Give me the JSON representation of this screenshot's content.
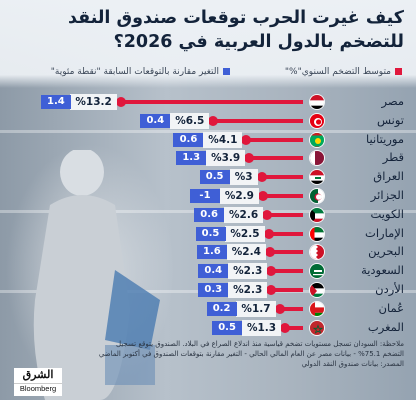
{
  "title": "كيف غيرت الحرب توقعات صندوق النقد للتضخم بالدول العربية في 2026؟",
  "legend": {
    "inflation": "متوسط التضخم السنوي\"%\"",
    "change": "التغير مقارنة بالتوقعات السابقة \"نقطة مئوية\""
  },
  "colors": {
    "bar": "#e0173c",
    "change_box": "#3f5fd6",
    "value_box": "#f2f4f6"
  },
  "chart_data": {
    "type": "bar",
    "orientation": "horizontal",
    "title": "كيف غيرت الحرب توقعات صندوق النقد للتضخم بالدول العربية في 2026؟",
    "categories": [
      "مصر",
      "تونس",
      "موريتانيا",
      "قطر",
      "العراق",
      "الجزائر",
      "الكويت",
      "الإمارات",
      "البحرين",
      "السعودية",
      "الأردن",
      "عُمان",
      "المغرب"
    ],
    "series": [
      {
        "name": "متوسط التضخم السنوي\"%\"",
        "values": [
          13.2,
          6.5,
          4.1,
          3.9,
          3,
          2.9,
          2.6,
          2.5,
          2.4,
          2.3,
          2.3,
          1.7,
          1.3
        ],
        "labels": [
          "%13.2",
          "%6.5",
          "%4.1",
          "%3.9",
          "%3",
          "%2.9",
          "%2.6",
          "%2.5",
          "%2.4",
          "%2.3",
          "%2.3",
          "%1.7",
          "%1.3"
        ]
      },
      {
        "name": "التغير مقارنة بالتوقعات السابقة \"نقطة مئوية\"",
        "values": [
          1.4,
          0.4,
          0.6,
          1.3,
          0.5,
          -1,
          0.6,
          0.5,
          1.6,
          0.4,
          0.3,
          0.2,
          0.5
        ],
        "labels": [
          "1.4",
          "0.4",
          "0.6",
          "1.3",
          "0.5",
          "-1",
          "0.6",
          "0.5",
          "1.6",
          "0.4",
          "0.3",
          "0.2",
          "0.5"
        ]
      }
    ],
    "flags": [
      "egypt-flag",
      "tunisia-flag",
      "mauritania-flag",
      "qatar-flag",
      "iraq-flag",
      "algeria-flag",
      "kuwait-flag",
      "uae-flag",
      "bahrain-flag",
      "saudi-flag",
      "jordan-flag",
      "oman-flag",
      "morocco-flag"
    ]
  },
  "notes": [
    "ملاحظة: السودان تسجل مستويات تضخم قياسية منذ اندلاع الصراع في البلاد. الصندوق يتوقع تسجيل",
    "التضخم 75.1% - بيانات مصر عن العام المالي الحالي - التغير مقارنة بتوقعات الصندوق في أكتوبر الماضي",
    "المصدر: بيانات صندوق النقد الدولي"
  ],
  "logo": {
    "arabic": "الشرق",
    "english": "Bloomberg"
  }
}
